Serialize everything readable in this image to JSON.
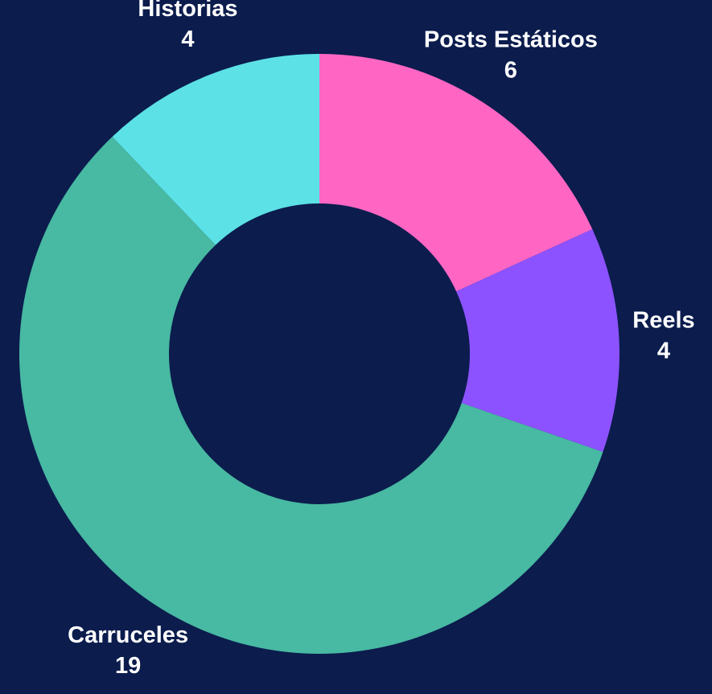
{
  "chart_data": {
    "type": "donut",
    "categories": [
      "Posts Estáticos",
      "Reels",
      "Carruceles",
      "Historias"
    ],
    "values": [
      6,
      4,
      19,
      4
    ],
    "colors": [
      "#ff66c4",
      "#8c52ff",
      "#48b9a2",
      "#5ce1e6"
    ]
  }
}
